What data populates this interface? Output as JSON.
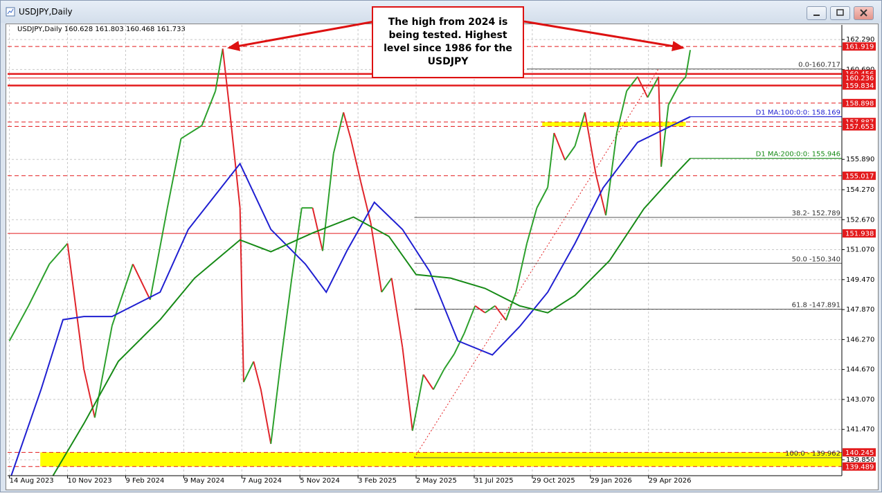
{
  "window": {
    "title": "USDJPY,Daily"
  },
  "chart_data": {
    "type": "line",
    "subtitle": "USDJPY,Daily  160.628 161.803 160.468 161.733",
    "annotation": "The high from 2024 is being tested. Highest level since 1986 for the USDJPY",
    "xlim": [
      -2,
      917
    ],
    "ylim": [
      139.0,
      163.07
    ],
    "grid": true,
    "xticks": [
      {
        "value": 0,
        "label": "14 Aug 2023"
      },
      {
        "value": 64,
        "label": "10 Nov 2023"
      },
      {
        "value": 128,
        "label": "9 Feb 2024"
      },
      {
        "value": 192,
        "label": "9 May 2024"
      },
      {
        "value": 256,
        "label": "7 Aug 2024"
      },
      {
        "value": 320,
        "label": "5 Nov 2024"
      },
      {
        "value": 384,
        "label": "3 Feb 2025"
      },
      {
        "value": 448,
        "label": "2 May 2025"
      },
      {
        "value": 512,
        "label": "31 Jul 2025"
      },
      {
        "value": 576,
        "label": "29 Oct 2025"
      },
      {
        "value": 640,
        "label": "29 Jan 2026"
      },
      {
        "value": 704,
        "label": "29 Apr 2026"
      }
    ],
    "yticks": [
      {
        "value": 162.29,
        "label": "162.290"
      },
      {
        "value": 160.69,
        "label": "160.690"
      },
      {
        "value": 155.89,
        "label": "155.890"
      },
      {
        "value": 154.27,
        "label": "154.270"
      },
      {
        "value": 152.67,
        "label": "152.670"
      },
      {
        "value": 151.07,
        "label": "151.070"
      },
      {
        "value": 149.47,
        "label": "149.470"
      },
      {
        "value": 147.87,
        "label": "147.870"
      },
      {
        "value": 146.27,
        "label": "146.270"
      },
      {
        "value": 144.67,
        "label": "144.670"
      },
      {
        "value": 143.07,
        "label": "143.070"
      },
      {
        "value": 141.47,
        "label": "141.470"
      },
      {
        "value": 139.85,
        "label": "139.850"
      }
    ],
    "up_color": "#2ca02c",
    "down_color": "#e0242a",
    "price": {
      "x": [
        0,
        21,
        44,
        64,
        82,
        94,
        113,
        136,
        155,
        174,
        189,
        212,
        227,
        235,
        242,
        254,
        258,
        269,
        277,
        288,
        299,
        311,
        322,
        334,
        345,
        357,
        368,
        376,
        387,
        398,
        410,
        421,
        433,
        444,
        456,
        467,
        479,
        490,
        501,
        513,
        524,
        535,
        547,
        558,
        570,
        581,
        593,
        600,
        612,
        623,
        634,
        646,
        657,
        669,
        680,
        692,
        703,
        715,
        718,
        726,
        738,
        745,
        750
      ],
      "values": [
        146.2,
        148.07,
        150.3,
        151.4,
        144.7,
        142.1,
        147.0,
        150.3,
        148.4,
        153.3,
        157.0,
        157.7,
        159.55,
        161.8,
        158.8,
        153.3,
        144.0,
        145.1,
        143.6,
        140.7,
        145.1,
        149.55,
        153.3,
        153.3,
        151.0,
        156.2,
        158.4,
        157.0,
        154.7,
        152.5,
        148.8,
        149.55,
        145.85,
        141.4,
        144.4,
        143.6,
        144.7,
        145.5,
        146.6,
        148.07,
        147.7,
        148.07,
        147.3,
        148.8,
        151.4,
        153.3,
        154.4,
        157.3,
        155.85,
        156.6,
        158.4,
        155.1,
        152.9,
        157.3,
        159.55,
        160.3,
        159.2,
        160.3,
        155.5,
        158.8,
        159.9,
        160.3,
        161.73
      ]
    },
    "series": [
      {
        "name": "D1 MA:100:0:0: 158.169",
        "color": "#1f1fd1",
        "x": [
          2,
          35,
          59,
          82,
          113,
          166,
          197,
          254,
          288,
          326,
          349,
          372,
          402,
          433,
          463,
          494,
          532,
          562,
          593,
          623,
          654,
          692,
          730,
          750
        ],
        "values": [
          139.0,
          143.63,
          147.33,
          147.5,
          147.5,
          148.8,
          152.15,
          155.66,
          152.15,
          150.3,
          148.8,
          151.03,
          153.6,
          152.15,
          149.9,
          146.2,
          145.45,
          146.96,
          148.8,
          151.4,
          154.37,
          156.8,
          157.7,
          158.169
        ]
      },
      {
        "name": "D1 MA:200:0:0: 155.946",
        "color": "#168a16",
        "x": [
          48,
          82,
          120,
          166,
          204,
          254,
          288,
          334,
          379,
          418,
          448,
          486,
          524,
          562,
          593,
          623,
          661,
          699,
          730,
          750
        ],
        "values": [
          139.0,
          141.78,
          145.11,
          147.33,
          149.55,
          151.59,
          150.96,
          151.96,
          152.81,
          151.78,
          149.74,
          149.55,
          149.0,
          148.07,
          147.7,
          148.63,
          150.48,
          153.26,
          154.92,
          155.946
        ]
      }
    ],
    "level_color": "#e31a1c",
    "levels": [
      {
        "value": 161.919,
        "style": "dashed"
      },
      {
        "value": 160.456,
        "style": "solid-thick"
      },
      {
        "value": 160.236,
        "style": "solid"
      },
      {
        "value": 159.834,
        "style": "solid-thick"
      },
      {
        "value": 158.898,
        "style": "dashed"
      },
      {
        "value": 157.887,
        "style": "dashed"
      },
      {
        "value": 157.653,
        "style": "dashed"
      },
      {
        "value": 155.017,
        "style": "dashed"
      },
      {
        "value": 151.938,
        "style": "solid"
      },
      {
        "value": 140.245,
        "style": "dashed"
      },
      {
        "value": 139.489,
        "style": "dashed"
      }
    ],
    "zone_color": "#ffff00",
    "zones": [
      {
        "x_start": 587,
        "x_end": 745,
        "low": 157.653,
        "high": 157.887
      },
      {
        "x_start": 34,
        "x_end": 917,
        "low": 139.489,
        "high": 140.245
      }
    ],
    "fib_color": "#555555",
    "fib_trend": {
      "x": [
        446,
        715
      ],
      "values": [
        139.962,
        160.717
      ]
    },
    "fib_levels": [
      {
        "label": "0.0-160.717",
        "value": 160.717,
        "x_start": 570
      },
      {
        "label": "38.2- 152.789",
        "value": 152.789,
        "x_start": 446
      },
      {
        "label": "50.0 -150.340",
        "value": 150.34,
        "x_start": 446
      },
      {
        "label": "61.8 -147.891",
        "value": 147.891,
        "x_start": 446
      },
      {
        "label": "100.0 - 139.962",
        "value": 139.962,
        "x_start": 446
      }
    ]
  }
}
